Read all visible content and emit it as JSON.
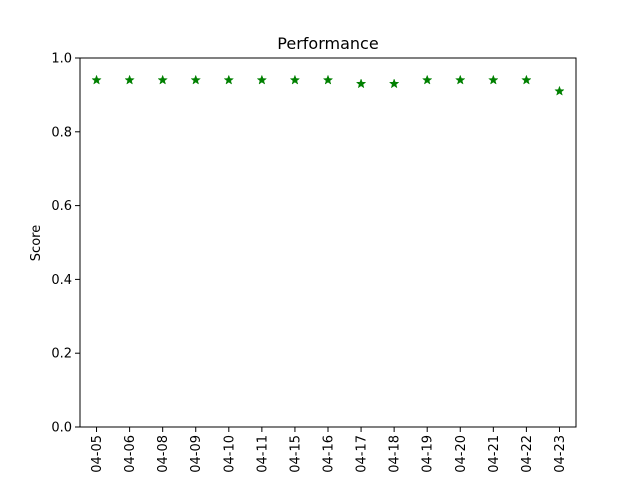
{
  "chart_data": {
    "type": "scatter",
    "title": "Performance",
    "xlabel": "",
    "ylabel": "Score",
    "categories": [
      "04-05",
      "04-06",
      "04-08",
      "04-09",
      "04-10",
      "04-11",
      "04-15",
      "04-16",
      "04-17",
      "04-18",
      "04-19",
      "04-20",
      "04-21",
      "04-22",
      "04-23"
    ],
    "series": [
      {
        "values": [
          0.94,
          0.94,
          0.94,
          0.94,
          0.94,
          0.94,
          0.94,
          0.94,
          0.93,
          0.93,
          0.94,
          0.94,
          0.94,
          0.94,
          0.91
        ],
        "color": "#008000",
        "marker": "star"
      }
    ],
    "ylim": [
      0.0,
      1.0
    ],
    "yticks": [
      "0.0",
      "0.2",
      "0.4",
      "0.6",
      "0.8",
      "1.0"
    ],
    "grid": false,
    "legend": "none"
  }
}
